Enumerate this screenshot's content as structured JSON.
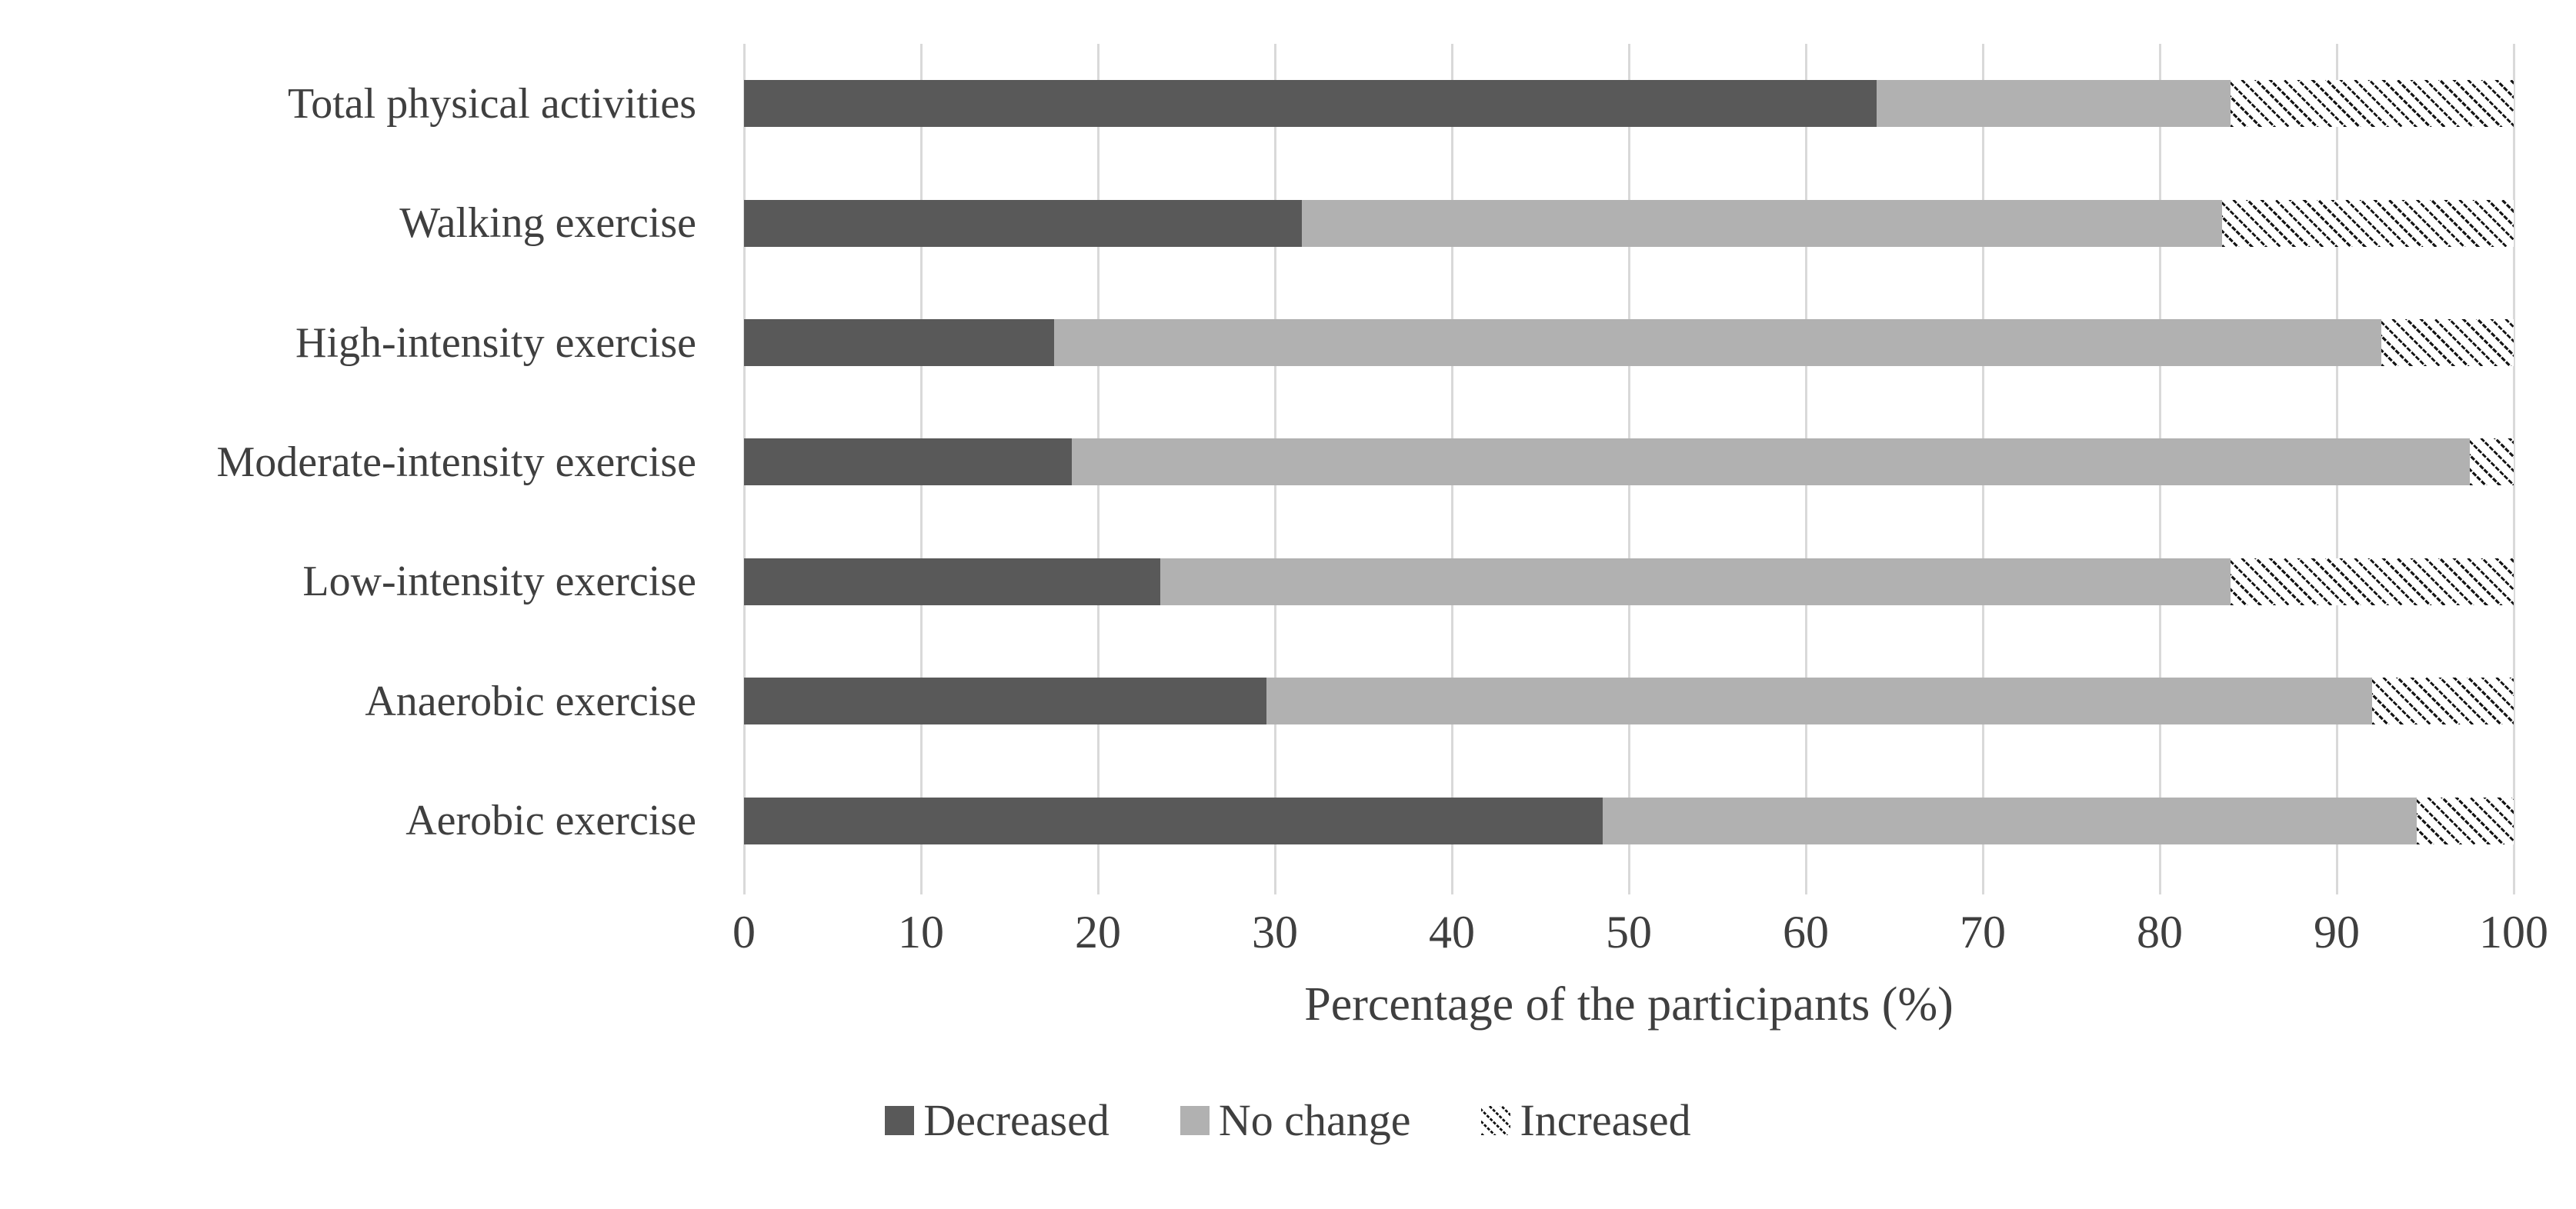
{
  "chart_data": {
    "type": "bar",
    "orientation": "horizontal",
    "stacked": true,
    "stacked_unit": "percent",
    "title": "",
    "xlabel": "Percentage of the participants (%)",
    "ylabel": "",
    "xlim": [
      0,
      100
    ],
    "xticks": [
      0,
      10,
      20,
      30,
      40,
      50,
      60,
      70,
      80,
      90,
      100
    ],
    "grid": true,
    "gridline_color": "#d9d9d9",
    "text_color": "#3f3f3f",
    "legend_position": "bottom-center",
    "categories": [
      "Total physical activities",
      "Walking exercise",
      "High-intensity exercise",
      "Moderate-intensity exercise",
      "Low-intensity exercise",
      "Anaerobic exercise",
      "Aerobic exercise"
    ],
    "series": [
      {
        "name": "Decreased",
        "style": "solid",
        "color": "#595959",
        "values": [
          64,
          31.5,
          17.5,
          18.5,
          23.5,
          29.5,
          48.5
        ]
      },
      {
        "name": "No change",
        "style": "solid",
        "color": "#b1b1b1",
        "values": [
          20,
          52,
          75,
          79,
          60.5,
          62.5,
          46
        ]
      },
      {
        "name": "Increased",
        "style": "diagonal-hatch",
        "color": "#141414",
        "values": [
          16,
          16.5,
          7.5,
          2.5,
          16,
          8,
          5.5
        ]
      }
    ]
  }
}
